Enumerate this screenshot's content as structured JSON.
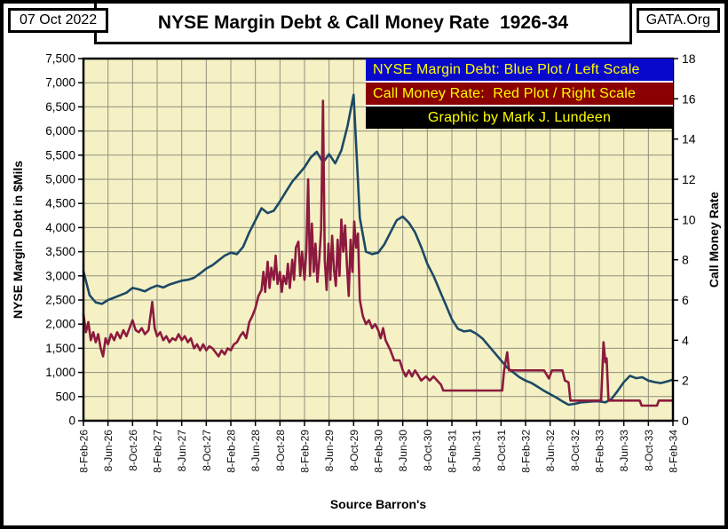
{
  "header": {
    "date": "07 Oct 2022",
    "title": "NYSE Margin Debt & Call Money Rate  1926-34",
    "brand": "GATA.Org"
  },
  "legend": {
    "text_color": "#FFFF00",
    "items": [
      {
        "label": "NYSE Margin Debt: Blue Plot / Left Scale",
        "bg": "#0808CC"
      },
      {
        "label": "Call Money Rate:  Red Plot / Right Scale",
        "bg": "#8B0000"
      },
      {
        "label": "Graphic by Mark J. Lundeen",
        "bg": "#000000"
      }
    ]
  },
  "chart_data": {
    "type": "line",
    "title": "NYSE Margin Debt & Call Money Rate  1926-34",
    "source": "Source Barron's",
    "plot_bg": "#F5F1C4",
    "grid_color": "#8F8F7E",
    "grid": true,
    "x_unit": "months since Feb-1926 (weekly Barron's data, ticks every 4 months)",
    "x_range": [
      0,
      96
    ],
    "x_tick_step_months": 4,
    "x_ticklabels": [
      "8-Feb-26",
      "8-Jun-26",
      "8-Oct-26",
      "8-Feb-27",
      "8-Jun-27",
      "8-Oct-27",
      "8-Feb-28",
      "8-Jun-28",
      "8-Oct-28",
      "8-Feb-29",
      "8-Jun-29",
      "8-Oct-29",
      "8-Feb-30",
      "8-Jun-30",
      "8-Oct-30",
      "8-Feb-31",
      "8-Jun-31",
      "8-Oct-31",
      "8-Feb-32",
      "8-Jun-32",
      "8-Oct-32",
      "8-Feb-33",
      "8-Jun-33",
      "8-Oct-33",
      "8-Feb-34"
    ],
    "left_axis": {
      "label": "NYSE Margin Debt in $Mils",
      "min": 0,
      "max": 7500,
      "step": 500
    },
    "right_axis": {
      "label": "Call Money Rate",
      "min": 0,
      "max": 18,
      "step": 2
    },
    "series": [
      {
        "name": "NYSE Margin Debt",
        "axis": "left",
        "color": "#1C4966",
        "x_step_months": 1,
        "values": [
          3100,
          2600,
          2450,
          2420,
          2500,
          2550,
          2600,
          2650,
          2750,
          2720,
          2680,
          2750,
          2800,
          2760,
          2820,
          2860,
          2900,
          2920,
          2960,
          3050,
          3150,
          3220,
          3320,
          3420,
          3480,
          3450,
          3600,
          3900,
          4150,
          4400,
          4300,
          4350,
          4540,
          4750,
          4950,
          5100,
          5250,
          5450,
          5570,
          5350,
          5520,
          5330,
          5600,
          6100,
          6750,
          4200,
          3500,
          3450,
          3480,
          3650,
          3900,
          4150,
          4230,
          4100,
          3900,
          3600,
          3250,
          3000,
          2700,
          2400,
          2100,
          1900,
          1850,
          1870,
          1800,
          1700,
          1550,
          1400,
          1250,
          1100,
          1000,
          900,
          830,
          780,
          700,
          620,
          550,
          480,
          400,
          330,
          350,
          380,
          390,
          400,
          400,
          380,
          450,
          620,
          800,
          930,
          880,
          900,
          830,
          800,
          780,
          810,
          850
        ]
      },
      {
        "name": "Call Money Rate",
        "axis": "right",
        "color": "#8C1A3E",
        "points": [
          [
            0,
            5.3
          ],
          [
            0.4,
            4.4
          ],
          [
            0.8,
            4.9
          ],
          [
            1.2,
            4.0
          ],
          [
            1.6,
            4.4
          ],
          [
            2,
            3.9
          ],
          [
            2.4,
            4.3
          ],
          [
            2.8,
            3.6
          ],
          [
            3.2,
            3.2
          ],
          [
            3.6,
            4.1
          ],
          [
            4,
            3.8
          ],
          [
            4.5,
            4.3
          ],
          [
            5,
            4.0
          ],
          [
            5.5,
            4.4
          ],
          [
            6,
            4.1
          ],
          [
            6.5,
            4.5
          ],
          [
            7,
            4.2
          ],
          [
            7.5,
            4.6
          ],
          [
            8,
            5.0
          ],
          [
            8.5,
            4.5
          ],
          [
            9,
            4.4
          ],
          [
            9.5,
            4.6
          ],
          [
            10,
            4.3
          ],
          [
            10.6,
            4.5
          ],
          [
            11.2,
            5.9
          ],
          [
            11.6,
            4.6
          ],
          [
            12,
            4.2
          ],
          [
            12.5,
            4.4
          ],
          [
            13,
            4.0
          ],
          [
            13.5,
            4.2
          ],
          [
            14,
            3.9
          ],
          [
            14.5,
            4.1
          ],
          [
            15,
            4.0
          ],
          [
            15.5,
            4.3
          ],
          [
            16,
            4.0
          ],
          [
            16.5,
            4.2
          ],
          [
            17,
            3.9
          ],
          [
            17.5,
            4.1
          ],
          [
            18,
            3.6
          ],
          [
            18.5,
            3.8
          ],
          [
            19,
            3.5
          ],
          [
            19.5,
            3.8
          ],
          [
            20,
            3.5
          ],
          [
            20.5,
            3.7
          ],
          [
            21,
            3.6
          ],
          [
            21.5,
            3.4
          ],
          [
            22,
            3.2
          ],
          [
            22.5,
            3.5
          ],
          [
            23,
            3.3
          ],
          [
            23.5,
            3.6
          ],
          [
            24,
            3.5
          ],
          [
            24.5,
            3.8
          ],
          [
            25,
            3.9
          ],
          [
            25.5,
            4.2
          ],
          [
            26,
            4.4
          ],
          [
            26.5,
            4.1
          ],
          [
            27,
            4.9
          ],
          [
            27.5,
            5.2
          ],
          [
            28,
            5.6
          ],
          [
            28.5,
            6.2
          ],
          [
            29,
            6.5
          ],
          [
            29.3,
            7.4
          ],
          [
            29.6,
            6.4
          ],
          [
            30,
            7.9
          ],
          [
            30.3,
            6.6
          ],
          [
            30.6,
            7.6
          ],
          [
            31,
            7.0
          ],
          [
            31.3,
            8.2
          ],
          [
            31.6,
            6.8
          ],
          [
            32,
            7.4
          ],
          [
            32.3,
            6.4
          ],
          [
            32.6,
            7.2
          ],
          [
            33,
            6.8
          ],
          [
            33.3,
            7.8
          ],
          [
            33.6,
            6.6
          ],
          [
            34,
            8.0
          ],
          [
            34.3,
            7.0
          ],
          [
            34.6,
            8.6
          ],
          [
            35,
            8.9
          ],
          [
            35.3,
            7.2
          ],
          [
            35.6,
            8.4
          ],
          [
            36,
            7.0
          ],
          [
            36.3,
            8.5
          ],
          [
            36.6,
            12.0
          ],
          [
            36.9,
            7.2
          ],
          [
            37.2,
            9.8
          ],
          [
            37.5,
            7.4
          ],
          [
            37.8,
            8.8
          ],
          [
            38.1,
            6.9
          ],
          [
            38.4,
            8.0
          ],
          [
            38.7,
            9.5
          ],
          [
            39,
            15.9
          ],
          [
            39.3,
            8.0
          ],
          [
            39.6,
            6.5
          ],
          [
            39.9,
            8.8
          ],
          [
            40.2,
            7.0
          ],
          [
            40.5,
            9.2
          ],
          [
            40.8,
            7.5
          ],
          [
            41.1,
            6.7
          ],
          [
            41.4,
            9.0
          ],
          [
            41.7,
            7.2
          ],
          [
            42,
            10.0
          ],
          [
            42.3,
            8.4
          ],
          [
            42.6,
            9.7
          ],
          [
            42.9,
            7.8
          ],
          [
            43.2,
            6.2
          ],
          [
            43.5,
            9.0
          ],
          [
            43.8,
            7.4
          ],
          [
            44.1,
            9.9
          ],
          [
            44.4,
            8.6
          ],
          [
            44.7,
            9.3
          ],
          [
            45,
            6.0
          ],
          [
            45.5,
            5.2
          ],
          [
            46,
            4.8
          ],
          [
            46.5,
            5.0
          ],
          [
            47,
            4.6
          ],
          [
            47.5,
            4.8
          ],
          [
            48,
            4.5
          ],
          [
            48.4,
            4.1
          ],
          [
            48.8,
            4.6
          ],
          [
            49.2,
            4.0
          ],
          [
            50,
            3.5
          ],
          [
            50.6,
            3.0
          ],
          [
            51.5,
            3.0
          ],
          [
            52,
            2.5
          ],
          [
            52.5,
            2.2
          ],
          [
            53,
            2.5
          ],
          [
            53.5,
            2.2
          ],
          [
            54,
            2.5
          ],
          [
            54.6,
            2.2
          ],
          [
            55,
            2.0
          ],
          [
            55.8,
            2.2
          ],
          [
            56.4,
            2.0
          ],
          [
            57,
            2.2
          ],
          [
            57.6,
            2.0
          ],
          [
            58.2,
            1.8
          ],
          [
            58.6,
            1.5
          ],
          [
            60,
            1.5
          ],
          [
            63,
            1.5
          ],
          [
            66,
            1.5
          ],
          [
            68.2,
            1.5
          ],
          [
            68.5,
            2.5
          ],
          [
            69,
            3.4
          ],
          [
            69.3,
            2.5
          ],
          [
            72,
            2.5
          ],
          [
            75,
            2.5
          ],
          [
            75.8,
            2.1
          ],
          [
            76.3,
            2.5
          ],
          [
            78,
            2.5
          ],
          [
            78.4,
            2.0
          ],
          [
            79,
            1.9
          ],
          [
            79.3,
            1.0
          ],
          [
            82,
            1.0
          ],
          [
            84.3,
            1.0
          ],
          [
            84.7,
            3.9
          ],
          [
            85,
            2.9
          ],
          [
            85.2,
            3.1
          ],
          [
            85.5,
            1.0
          ],
          [
            88,
            1.0
          ],
          [
            90.6,
            1.0
          ],
          [
            90.9,
            0.75
          ],
          [
            93.4,
            0.75
          ],
          [
            93.7,
            1.0
          ],
          [
            96,
            1.0
          ]
        ]
      }
    ]
  }
}
